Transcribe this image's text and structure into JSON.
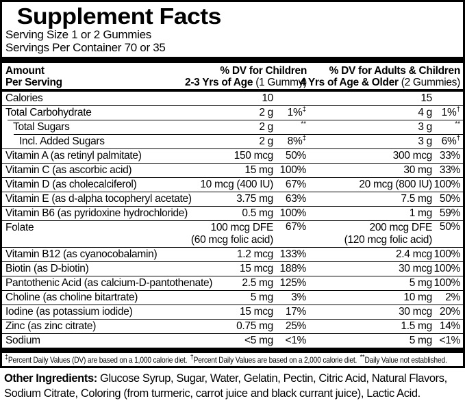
{
  "colors": {
    "background": "#ffffff",
    "text": "#000000",
    "rules": "#000000"
  },
  "title": "Supplement Facts",
  "serving": {
    "size": "Serving Size 1 or 2 Gummies",
    "per_container": "Servings Per Container 70 or 35"
  },
  "header": {
    "amount_line1": "Amount",
    "amount_line2": "Per Serving",
    "children_line1": "% DV for Children",
    "children_line2_bold": "2-3 Yrs of Age",
    "children_line2_normal": "(1 Gummy)",
    "adults_line1": "% DV for Adults & Children",
    "adults_line2_bold": "4 Yrs of Age & Older",
    "adults_line2_normal": "(2 Gummies)"
  },
  "rows": [
    {
      "name": "Calories",
      "indent": 0,
      "sep": null,
      "c_amt": "10",
      "c_amt2": null,
      "c_pct": "",
      "c_sup": "",
      "a_amt": "15",
      "a_amt2": null,
      "a_pct": "",
      "a_sup": ""
    },
    {
      "name": "Total Carbohydrate",
      "indent": 0,
      "sep": 0,
      "c_amt": "2 g",
      "c_amt2": null,
      "c_pct": "1%",
      "c_sup": "‡",
      "a_amt": "4 g",
      "a_amt2": null,
      "a_pct": "1%",
      "a_sup": "†"
    },
    {
      "name": "Total Sugars",
      "indent": 1,
      "sep": 8,
      "c_amt": "2 g",
      "c_amt2": null,
      "c_pct": "",
      "c_sup": "**",
      "a_amt": "3 g",
      "a_amt2": null,
      "a_pct": "",
      "a_sup": "**"
    },
    {
      "name": "Incl. Added Sugars",
      "indent": 2,
      "sep": 17,
      "c_amt": "2 g",
      "c_amt2": null,
      "c_pct": "8%",
      "c_sup": "‡",
      "a_amt": "3 g",
      "a_amt2": null,
      "a_pct": "6%",
      "a_sup": "†"
    },
    {
      "name": "Vitamin A (as retinyl palmitate)",
      "indent": 0,
      "sep": 0,
      "c_amt": "150 mcg",
      "c_amt2": null,
      "c_pct": "50%",
      "c_sup": "",
      "a_amt": "300 mcg",
      "a_amt2": null,
      "a_pct": "33%",
      "a_sup": ""
    },
    {
      "name": "Vitamin C (as ascorbic acid)",
      "indent": 0,
      "sep": 0,
      "c_amt": "15 mg",
      "c_amt2": null,
      "c_pct": "100%",
      "c_sup": "",
      "a_amt": "30 mg",
      "a_amt2": null,
      "a_pct": "33%",
      "a_sup": ""
    },
    {
      "name": "Vitamin D (as cholecalciferol)",
      "indent": 0,
      "sep": 0,
      "c_amt": "10 mcg (400 IU)",
      "c_amt2": null,
      "c_pct": "67%",
      "c_sup": "",
      "a_amt": "20 mcg (800 IU)",
      "a_amt2": null,
      "a_pct": "100%",
      "a_sup": ""
    },
    {
      "name": "Vitamin E (as d-alpha tocopheryl acetate)",
      "indent": 0,
      "sep": 0,
      "c_amt": "3.75 mg",
      "c_amt2": null,
      "c_pct": "63%",
      "c_sup": "",
      "a_amt": "7.5 mg",
      "a_amt2": null,
      "a_pct": "50%",
      "a_sup": ""
    },
    {
      "name": "Vitamin B6 (as pyridoxine hydrochloride)",
      "indent": 0,
      "sep": 0,
      "c_amt": "0.5 mg",
      "c_amt2": null,
      "c_pct": "100%",
      "c_sup": "",
      "a_amt": "1 mg",
      "a_amt2": null,
      "a_pct": "59%",
      "a_sup": ""
    },
    {
      "name": "Folate",
      "indent": 0,
      "sep": 0,
      "c_amt": "100 mcg DFE",
      "c_amt2": "(60 mcg folic acid)",
      "c_pct": "67%",
      "c_sup": "",
      "a_amt": "200 mcg DFE",
      "a_amt2": "(120 mcg folic acid)",
      "a_pct": "50%",
      "a_sup": ""
    },
    {
      "name": "Vitamin B12 (as cyanocobalamin)",
      "indent": 0,
      "sep": 0,
      "c_amt": "1.2 mcg",
      "c_amt2": null,
      "c_pct": "133%",
      "c_sup": "",
      "a_amt": "2.4 mcg",
      "a_amt2": null,
      "a_pct": "100%",
      "a_sup": ""
    },
    {
      "name": "Biotin (as D-biotin)",
      "indent": 0,
      "sep": 0,
      "c_amt": "15 mcg",
      "c_amt2": null,
      "c_pct": "188%",
      "c_sup": "",
      "a_amt": "30 mcg",
      "a_amt2": null,
      "a_pct": "100%",
      "a_sup": ""
    },
    {
      "name": "Pantothenic Acid (as calcium-D-pantothenate)",
      "indent": 0,
      "sep": 0,
      "c_amt": "2.5 mg",
      "c_amt2": null,
      "c_pct": "125%",
      "c_sup": "",
      "a_amt": "5 mg",
      "a_amt2": null,
      "a_pct": "100%",
      "a_sup": ""
    },
    {
      "name": "Choline (as choline bitartrate)",
      "indent": 0,
      "sep": 0,
      "c_amt": "5 mg",
      "c_amt2": null,
      "c_pct": "3%",
      "c_sup": "",
      "a_amt": "10 mg",
      "a_amt2": null,
      "a_pct": "2%",
      "a_sup": ""
    },
    {
      "name": "Iodine (as potassium iodide)",
      "indent": 0,
      "sep": 0,
      "c_amt": "15 mcg",
      "c_amt2": null,
      "c_pct": "17%",
      "c_sup": "",
      "a_amt": "30 mcg",
      "a_amt2": null,
      "a_pct": "20%",
      "a_sup": ""
    },
    {
      "name": "Zinc (as zinc citrate)",
      "indent": 0,
      "sep": 0,
      "c_amt": "0.75 mg",
      "c_amt2": null,
      "c_pct": "25%",
      "c_sup": "",
      "a_amt": "1.5 mg",
      "a_amt2": null,
      "a_pct": "14%",
      "a_sup": ""
    },
    {
      "name": "Sodium",
      "indent": 0,
      "sep": 0,
      "c_amt": "<5 mg",
      "c_amt2": null,
      "c_pct": "<1%",
      "c_sup": "",
      "a_amt": "5 mg",
      "a_amt2": null,
      "a_pct": "<1%",
      "a_sup": ""
    }
  ],
  "footnote": {
    "p1_sup": "‡",
    "p1_text": "Percent Daily Values (DV) are based on a 1,000 calorie diet.",
    "p2_sup": "†",
    "p2_text": "Percent Daily Values are based on a 2,000 calorie diet.",
    "p3_sup": "**",
    "p3_text": "Daily Value not established."
  },
  "other_ingredients": {
    "label": "Other Ingredients:",
    "text": "Glucose Syrup, Sugar, Water, Gelatin, Pectin, Citric Acid, Natural Flavors, Sodium Citrate, Coloring (from turmeric, carrot juice and black currant juice), Lactic Acid."
  }
}
